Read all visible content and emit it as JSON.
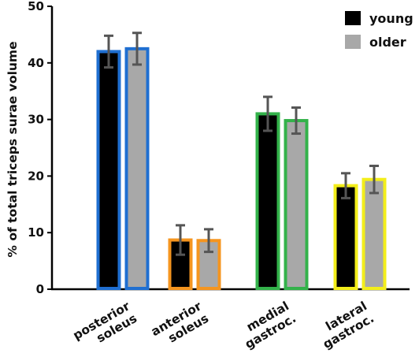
{
  "chart_data": {
    "type": "bar",
    "ylabel": "% of total triceps surae volume",
    "ylim": [
      0,
      50
    ],
    "yticks": [
      0,
      10,
      20,
      30,
      40,
      50
    ],
    "categories": [
      {
        "lines": [
          "posterior",
          "soleus"
        ],
        "outline": "#1f6fd1"
      },
      {
        "lines": [
          "anterior",
          "soleus"
        ],
        "outline": "#f5951f"
      },
      {
        "lines": [
          "medial",
          "gastroc."
        ],
        "outline": "#33b24a"
      },
      {
        "lines": [
          "lateral",
          "gastroc."
        ],
        "outline": "#f3ee1a"
      }
    ],
    "series": [
      {
        "name": "young",
        "color": "#000000",
        "values": [
          42,
          8.7,
          31,
          18.3
        ],
        "errors": [
          2.8,
          2.6,
          3.0,
          2.2
        ]
      },
      {
        "name": "older",
        "color": "#a8a8a8",
        "values": [
          42.5,
          8.6,
          29.8,
          19.4
        ],
        "errors": [
          2.8,
          2.0,
          2.3,
          2.4
        ]
      }
    ],
    "legend_position": "top-right"
  }
}
